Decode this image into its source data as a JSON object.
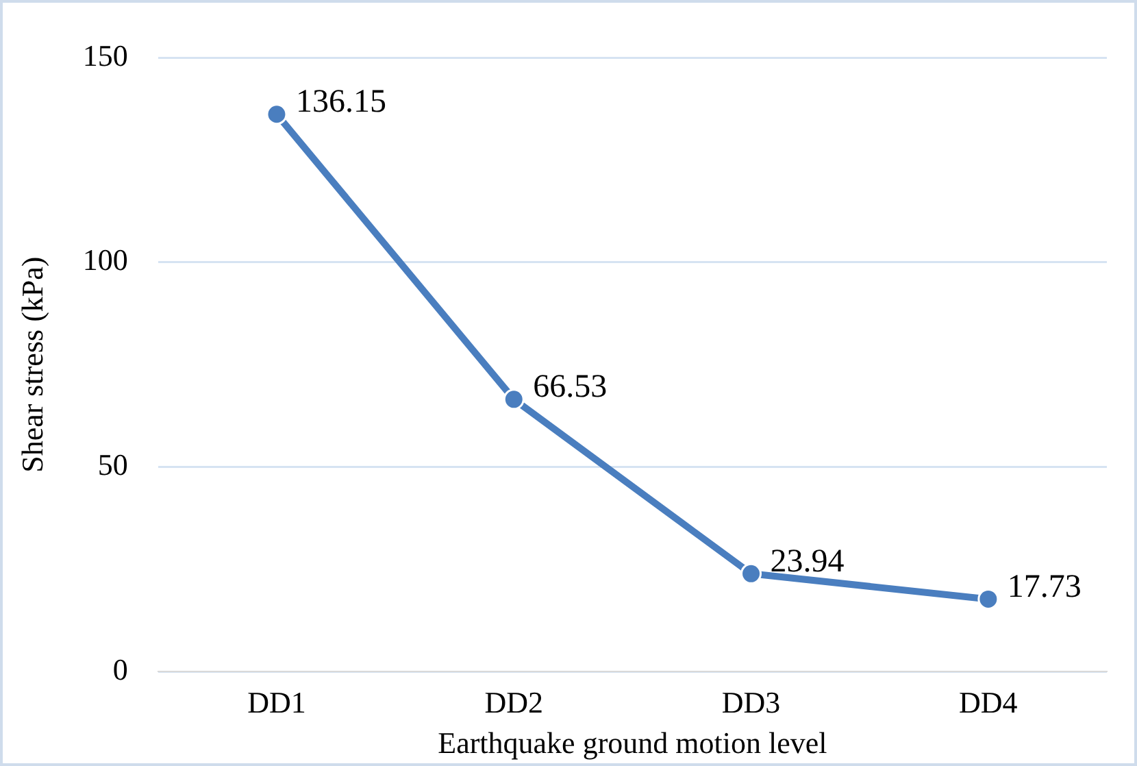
{
  "chart_data": {
    "type": "line",
    "xlabel": "Earthquake ground motion level",
    "ylabel": "Shear stress (kPa)",
    "categories": [
      "DD1",
      "DD2",
      "DD3",
      "DD4"
    ],
    "series": [
      {
        "color": "#4a7ebf",
        "values": [
          136.15,
          66.53,
          23.94,
          17.73
        ]
      }
    ],
    "ylim": [
      0,
      150
    ],
    "yticks": [
      0,
      50,
      100,
      150
    ],
    "grid": "y",
    "marker": "circle",
    "line_style": "solid",
    "data_labels": true,
    "legend": false
  }
}
